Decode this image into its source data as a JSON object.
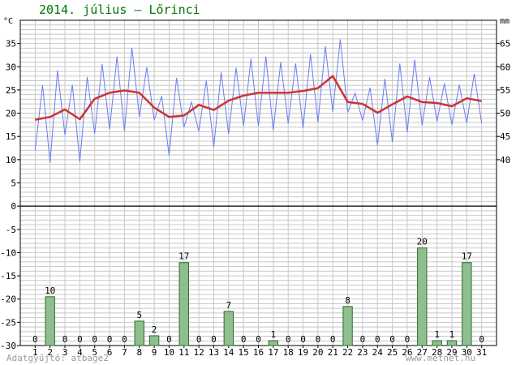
{
  "header": {
    "title": "2014. július – Lőrinci"
  },
  "footer": {
    "credit_left": "Adatgyűjtő: atbage2",
    "credit_right": "www.metnet.hu"
  },
  "colors": {
    "temp_line": "#6a7df0",
    "mean_line": "#cc3333",
    "bar_fill": "#8fbf8f",
    "bar_stroke": "#2e6b2e",
    "grid": "#c8c8c8",
    "axis": "#000000",
    "title": "#007700",
    "credit": "#999999"
  },
  "chart_data": {
    "type": "line",
    "title": "2014. július – Lőrinci",
    "xlabel": "",
    "ylabel_left": "°C",
    "ylabel_right": "mm",
    "grid": true,
    "x_ticks": [
      1,
      2,
      3,
      4,
      5,
      6,
      7,
      8,
      9,
      10,
      11,
      12,
      13,
      14,
      15,
      16,
      17,
      18,
      19,
      20,
      21,
      22,
      23,
      24,
      25,
      26,
      27,
      28,
      29,
      30,
      31
    ],
    "y_left_ticks": [
      35,
      30,
      25,
      20,
      15,
      10,
      5,
      0,
      -5,
      -10,
      -15,
      -20,
      -25,
      -30
    ],
    "y_left_tick_labels": [
      "35",
      "30",
      "25",
      "20",
      "15",
      "10",
      "5",
      "0",
      "-5",
      "-10",
      "-15",
      "-20",
      "-25",
      "-30"
    ],
    "y_left_range": [
      -30,
      40
    ],
    "y_right_ticks": [
      65,
      60,
      55,
      50,
      45,
      40
    ],
    "y_right_tick_labels": [
      "65",
      "60",
      "55",
      "50",
      "45",
      "40"
    ],
    "series": [
      {
        "type": "line",
        "x": [
          1,
          1.5,
          2,
          2.5,
          3,
          3.5,
          4,
          4.5,
          5,
          5.5,
          6,
          6.5,
          7,
          7.5,
          8,
          8.5,
          9,
          9.5,
          10,
          10.5,
          11,
          11.5,
          12,
          12.5,
          13,
          13.5,
          14,
          14.5,
          15,
          15.5,
          16,
          16.5,
          17,
          17.5,
          18,
          18.5,
          19,
          19.5,
          20,
          20.5,
          21,
          21.5,
          22,
          22.5,
          23,
          23.5,
          24,
          24.5,
          25,
          25.5,
          26,
          26.5,
          27,
          27.5,
          28,
          28.5,
          29,
          29.5,
          30,
          30.5,
          31
        ],
        "values": [
          12,
          26,
          9.3,
          29.2,
          15.3,
          26.1,
          9.5,
          27.8,
          15.6,
          30.6,
          16.5,
          32.2,
          16.2,
          34.1,
          19.2,
          29.9,
          18.5,
          23.7,
          10.9,
          27.6,
          17,
          22.4,
          16.1,
          27,
          12.7,
          28.8,
          15.5,
          29.8,
          17.2,
          31.7,
          17.2,
          32.2,
          16.3,
          31,
          17.8,
          30.7,
          16.8,
          32.7,
          18,
          34.4,
          20.3,
          35.9,
          20.2,
          24.3,
          18.4,
          25.5,
          13.1,
          27.4,
          13.8,
          30.7,
          15.9,
          31.5,
          17.4,
          27.8,
          18.2,
          26.4,
          17.5,
          26.1,
          17.9,
          28.5,
          17.8
        ]
      },
      {
        "type": "line",
        "x": [
          1,
          2,
          3,
          4,
          5,
          6,
          7,
          8,
          9,
          10,
          11,
          12,
          13,
          14,
          15,
          16,
          17,
          18,
          19,
          20,
          21,
          22,
          23,
          24,
          25,
          26,
          27,
          28,
          29,
          30,
          31
        ],
        "values": [
          18.6,
          19.2,
          20.8,
          18.7,
          23.1,
          24.4,
          24.9,
          24.4,
          21.2,
          19.2,
          19.5,
          21.8,
          20.7,
          22.7,
          23.8,
          24.4,
          24.4,
          24.4,
          24.8,
          25.4,
          28,
          22.4,
          22,
          20.1,
          21.9,
          23.6,
          22.4,
          22.2,
          21.5,
          23.2,
          22.6
        ]
      },
      {
        "type": "bar",
        "x": [
          1,
          2,
          3,
          4,
          5,
          6,
          7,
          8,
          9,
          10,
          11,
          12,
          13,
          14,
          15,
          16,
          17,
          18,
          19,
          20,
          21,
          22,
          23,
          24,
          25,
          26,
          27,
          28,
          29,
          30,
          31
        ],
        "values": [
          0,
          10,
          0,
          0,
          0,
          0,
          0,
          5,
          2,
          0,
          17,
          0,
          0,
          7,
          0,
          0,
          1,
          0,
          0,
          0,
          0,
          8,
          0,
          0,
          0,
          0,
          20,
          1,
          1,
          17,
          0
        ],
        "data_labels": [
          "0",
          "10",
          "0",
          "0",
          "0",
          "0",
          "0",
          "5",
          "2",
          "0",
          "17",
          "0",
          "0",
          "7",
          "0",
          "0",
          "1",
          "0",
          "0",
          "0",
          "0",
          "8",
          "0",
          "0",
          "0",
          "0",
          "20",
          "1",
          "1",
          "17",
          "0"
        ]
      }
    ]
  }
}
